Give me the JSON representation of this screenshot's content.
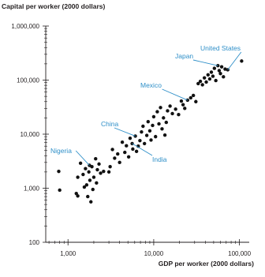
{
  "chart_data": {
    "type": "scatter",
    "title": "",
    "ylabel": "Capital per worker (2000 dollars)",
    "xlabel": "GDP per worker (2000 dollars)",
    "x_scale": "log",
    "y_scale": "log",
    "xlim": [
      550,
      130000
    ],
    "ylim": [
      100,
      1000000
    ],
    "x_ticks": [
      {
        "value": 1000,
        "label": "1,000"
      },
      {
        "value": 10000,
        "label": "10,000"
      },
      {
        "value": 100000,
        "label": "100,000"
      }
    ],
    "y_ticks": [
      {
        "value": 100,
        "label": "100"
      },
      {
        "value": 1000,
        "label": "1,000"
      },
      {
        "value": 10000,
        "label": "10,000"
      },
      {
        "value": 100000,
        "label": "100,000"
      },
      {
        "value": 1000000,
        "label": "1,000,000"
      }
    ],
    "grid": false,
    "annotations": [
      {
        "label": "Nigeria",
        "x": 1780,
        "y": 2650
      },
      {
        "label": "China",
        "x": 6100,
        "y": 9200
      },
      {
        "label": "India",
        "x": 5600,
        "y": 6700
      },
      {
        "label": "Mexico",
        "x": 24800,
        "y": 42500
      },
      {
        "label": "Japan",
        "x": 56000,
        "y": 185000
      },
      {
        "label": "United States",
        "x": 73000,
        "y": 155000
      }
    ],
    "points": [
      {
        "x": 780,
        "y": 2050
      },
      {
        "x": 800,
        "y": 920
      },
      {
        "x": 1250,
        "y": 800
      },
      {
        "x": 1300,
        "y": 720
      },
      {
        "x": 1300,
        "y": 1600
      },
      {
        "x": 1400,
        "y": 2900
      },
      {
        "x": 1500,
        "y": 1800
      },
      {
        "x": 1550,
        "y": 1050
      },
      {
        "x": 1600,
        "y": 2300
      },
      {
        "x": 1650,
        "y": 1150
      },
      {
        "x": 1700,
        "y": 700
      },
      {
        "x": 1750,
        "y": 2000
      },
      {
        "x": 1780,
        "y": 2650
      },
      {
        "x": 1800,
        "y": 1400
      },
      {
        "x": 1850,
        "y": 560
      },
      {
        "x": 1900,
        "y": 2500
      },
      {
        "x": 1950,
        "y": 950
      },
      {
        "x": 2000,
        "y": 1600
      },
      {
        "x": 2100,
        "y": 3500
      },
      {
        "x": 2150,
        "y": 1250
      },
      {
        "x": 2200,
        "y": 2200
      },
      {
        "x": 2300,
        "y": 2800
      },
      {
        "x": 2400,
        "y": 1900
      },
      {
        "x": 2600,
        "y": 2050
      },
      {
        "x": 3000,
        "y": 2000
      },
      {
        "x": 3100,
        "y": 2500
      },
      {
        "x": 3300,
        "y": 5200
      },
      {
        "x": 3500,
        "y": 3600
      },
      {
        "x": 3800,
        "y": 4300
      },
      {
        "x": 4000,
        "y": 3000
      },
      {
        "x": 4300,
        "y": 7100
      },
      {
        "x": 4600,
        "y": 4600
      },
      {
        "x": 4800,
        "y": 6100
      },
      {
        "x": 5100,
        "y": 3800
      },
      {
        "x": 5300,
        "y": 8400
      },
      {
        "x": 5600,
        "y": 6700
      },
      {
        "x": 5700,
        "y": 5300
      },
      {
        "x": 6100,
        "y": 9200
      },
      {
        "x": 6300,
        "y": 4800
      },
      {
        "x": 6600,
        "y": 6000
      },
      {
        "x": 6900,
        "y": 7600
      },
      {
        "x": 7200,
        "y": 11000
      },
      {
        "x": 7500,
        "y": 14000
      },
      {
        "x": 7800,
        "y": 6700
      },
      {
        "x": 8300,
        "y": 9500
      },
      {
        "x": 8600,
        "y": 17000
      },
      {
        "x": 9000,
        "y": 11500
      },
      {
        "x": 9300,
        "y": 7800
      },
      {
        "x": 9700,
        "y": 14500
      },
      {
        "x": 10000,
        "y": 21000
      },
      {
        "x": 10500,
        "y": 9000
      },
      {
        "x": 11000,
        "y": 26000
      },
      {
        "x": 11500,
        "y": 15500
      },
      {
        "x": 12000,
        "y": 31000
      },
      {
        "x": 12500,
        "y": 12500
      },
      {
        "x": 13000,
        "y": 20000
      },
      {
        "x": 13500,
        "y": 9600
      },
      {
        "x": 14000,
        "y": 16500
      },
      {
        "x": 14500,
        "y": 27000
      },
      {
        "x": 15500,
        "y": 33000
      },
      {
        "x": 16500,
        "y": 24000
      },
      {
        "x": 18000,
        "y": 29000
      },
      {
        "x": 19500,
        "y": 23000
      },
      {
        "x": 21000,
        "y": 41000
      },
      {
        "x": 22000,
        "y": 35000
      },
      {
        "x": 23000,
        "y": 30000
      },
      {
        "x": 24800,
        "y": 42500
      },
      {
        "x": 27000,
        "y": 47000
      },
      {
        "x": 29000,
        "y": 52000
      },
      {
        "x": 31000,
        "y": 40000
      },
      {
        "x": 33000,
        "y": 86000
      },
      {
        "x": 35000,
        "y": 95000
      },
      {
        "x": 37000,
        "y": 82000
      },
      {
        "x": 39000,
        "y": 110000
      },
      {
        "x": 41000,
        "y": 92000
      },
      {
        "x": 43000,
        "y": 125000
      },
      {
        "x": 45000,
        "y": 105000
      },
      {
        "x": 47000,
        "y": 140000
      },
      {
        "x": 49000,
        "y": 118000
      },
      {
        "x": 51000,
        "y": 165000
      },
      {
        "x": 53000,
        "y": 98000
      },
      {
        "x": 56000,
        "y": 185000
      },
      {
        "x": 58000,
        "y": 150000
      },
      {
        "x": 60000,
        "y": 132000
      },
      {
        "x": 62000,
        "y": 176000
      },
      {
        "x": 65000,
        "y": 115000
      },
      {
        "x": 68000,
        "y": 160000
      },
      {
        "x": 73000,
        "y": 155000
      },
      {
        "x": 106000,
        "y": 225000
      }
    ]
  }
}
